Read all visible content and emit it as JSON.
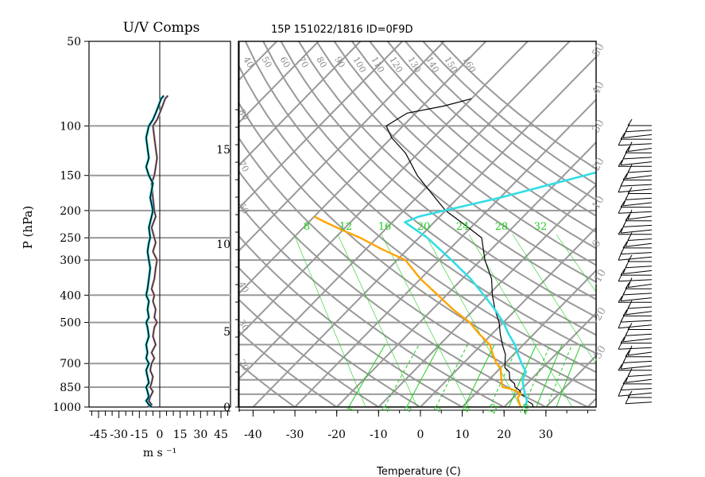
{
  "left_panel": {
    "title": "U/V Comps",
    "ylabel": "P (hPa)",
    "xlabel": "m s ⁻¹",
    "p_ticks": [
      50,
      100,
      150,
      200,
      250,
      300,
      400,
      500,
      700,
      850,
      1000
    ],
    "x_ticks": [
      -45,
      -30,
      -15,
      0,
      15,
      30,
      45
    ],
    "xlim": [
      -52,
      52
    ]
  },
  "main_panel": {
    "title": "15P 151022/1816 ID=0F9D",
    "xlabel": "Temperature (C)",
    "height_ticks": [
      0,
      5,
      10,
      15
    ],
    "x_ticks": [
      -40,
      -30,
      -20,
      -10,
      0,
      10,
      20,
      30
    ],
    "theta_labels": [
      40,
      50,
      60,
      70,
      80,
      90,
      100,
      110,
      120,
      130,
      140,
      150,
      160
    ],
    "theta_left_labels": [
      80,
      70,
      50,
      40,
      30,
      20
    ],
    "theta_e_right_labels": [
      50,
      40,
      30,
      20,
      10,
      0,
      -10,
      -20,
      -30
    ],
    "mixing_ratio_labels_mid": [
      8,
      12,
      16,
      20,
      24,
      28,
      32
    ],
    "mixing_ratio_labels_bottom": [
      1,
      2,
      3,
      5,
      8,
      12,
      20
    ]
  },
  "colors": {
    "grid": "#999999",
    "temperature": "#000000",
    "dewpoint": "#ffa500",
    "parcel": "#33dde6",
    "wind_u": "#1a1a80",
    "wind_v": "#000000",
    "mixing_ratio": "#22cc22"
  },
  "chart_data": [
    {
      "type": "line",
      "title": "U/V Comps",
      "ylabel": "P (hPa)",
      "xlabel": "m s -1",
      "x_ticks": [
        -45,
        -30,
        -15,
        0,
        15,
        30,
        45
      ],
      "series": [
        {
          "points": [
            [
              -9,
              1000
            ],
            [
              -6,
              980
            ],
            [
              -8,
              950
            ],
            [
              -7,
              920
            ],
            [
              -5,
              880
            ],
            [
              -7,
              850
            ],
            [
              -6,
              820
            ],
            [
              -5,
              780
            ],
            [
              -7,
              740
            ],
            [
              -6,
              700
            ],
            [
              -4,
              670
            ],
            [
              -6,
              640
            ],
            [
              -3,
              600
            ],
            [
              -5,
              560
            ],
            [
              -4,
              520
            ],
            [
              -2,
              500
            ],
            [
              -4,
              480
            ],
            [
              -3,
              450
            ],
            [
              -5,
              420
            ],
            [
              -4,
              400
            ],
            [
              -6,
              380
            ],
            [
              -4,
              350
            ],
            [
              -3,
              320
            ],
            [
              -2,
              300
            ],
            [
              -5,
              280
            ],
            [
              -3,
              260
            ],
            [
              -4,
              250
            ],
            [
              -6,
              230
            ],
            [
              -3,
              210
            ],
            [
              -4,
              200
            ],
            [
              -5,
              180
            ],
            [
              -6,
              160
            ],
            [
              -4,
              150
            ],
            [
              -3,
              140
            ],
            [
              -2,
              130
            ],
            [
              -3,
              120
            ],
            [
              -4,
              110
            ],
            [
              -5,
              100
            ],
            [
              -2,
              95
            ],
            [
              0,
              90
            ],
            [
              2,
              85
            ],
            [
              4,
              80
            ],
            [
              6,
              78
            ]
          ]
        },
        {
          "points": [
            [
              -6,
              1000
            ],
            [
              -8,
              980
            ],
            [
              -10,
              950
            ],
            [
              -8,
              920
            ],
            [
              -9,
              880
            ],
            [
              -10,
              850
            ],
            [
              -8,
              820
            ],
            [
              -9,
              780
            ],
            [
              -10,
              740
            ],
            [
              -8,
              700
            ],
            [
              -10,
              670
            ],
            [
              -9,
              640
            ],
            [
              -10,
              600
            ],
            [
              -8,
              560
            ],
            [
              -9,
              520
            ],
            [
              -10,
              500
            ],
            [
              -8,
              480
            ],
            [
              -9,
              450
            ],
            [
              -8,
              420
            ],
            [
              -10,
              400
            ],
            [
              -9,
              380
            ],
            [
              -8,
              350
            ],
            [
              -7,
              320
            ],
            [
              -8,
              300
            ],
            [
              -9,
              280
            ],
            [
              -8,
              260
            ],
            [
              -7,
              250
            ],
            [
              -8,
              230
            ],
            [
              -6,
              210
            ],
            [
              -5,
              200
            ],
            [
              -7,
              180
            ],
            [
              -5,
              160
            ],
            [
              -8,
              150
            ],
            [
              -10,
              140
            ],
            [
              -8,
              130
            ],
            [
              -9,
              120
            ],
            [
              -10,
              110
            ],
            [
              -8,
              100
            ],
            [
              -5,
              95
            ],
            [
              -3,
              90
            ],
            [
              -1,
              85
            ],
            [
              1,
              80
            ],
            [
              3,
              78
            ]
          ]
        }
      ]
    },
    {
      "type": "line",
      "title": "15P 151022/1816 ID=0F9D",
      "xlabel": "Temperature (C)",
      "x_ticks": [
        -40,
        -30,
        -20,
        -10,
        0,
        10,
        20,
        30
      ],
      "series": [
        {
          "points": [
            [
              27,
              1000
            ],
            [
              26,
              975
            ],
            [
              24,
              950
            ],
            [
              23,
              925
            ],
            [
              21,
              900
            ],
            [
              20,
              875
            ],
            [
              18,
              850
            ],
            [
              17,
              825
            ],
            [
              15,
              800
            ],
            [
              14,
              775
            ],
            [
              13,
              750
            ],
            [
              11,
              725
            ],
            [
              10,
              700
            ],
            [
              8,
              650
            ],
            [
              5,
              600
            ],
            [
              2,
              550
            ],
            [
              -1,
              500
            ],
            [
              -5,
              450
            ],
            [
              -9,
              400
            ],
            [
              -13,
              350
            ],
            [
              -19,
              300
            ],
            [
              -25,
              250
            ],
            [
              -32,
              225
            ],
            [
              -40,
              200
            ],
            [
              -47,
              175
            ],
            [
              -55,
              150
            ],
            [
              -63,
              125
            ],
            [
              -70,
              110
            ],
            [
              -74,
              100
            ],
            [
              -72,
              90
            ],
            [
              -65,
              85
            ],
            [
              -60,
              80
            ]
          ]
        },
        {
          "points": [
            [
              24,
              1000
            ],
            [
              23,
              975
            ],
            [
              22,
              950
            ],
            [
              21,
              925
            ],
            [
              21,
              900
            ],
            [
              19,
              875
            ],
            [
              17,
              860
            ],
            [
              15,
              850
            ],
            [
              14,
              825
            ],
            [
              13,
              800
            ],
            [
              12,
              775
            ],
            [
              11,
              750
            ],
            [
              10,
              725
            ],
            [
              8,
              700
            ],
            [
              5,
              650
            ],
            [
              2,
              600
            ],
            [
              -3,
              550
            ],
            [
              -8,
              500
            ],
            [
              -15,
              450
            ],
            [
              -22,
              400
            ],
            [
              -30,
              350
            ],
            [
              -38,
              300
            ],
            [
              -46,
              275
            ],
            [
              -54,
              250
            ],
            [
              -60,
              235
            ],
            [
              -66,
              220
            ],
            [
              -70,
              210
            ]
          ]
        },
        {
          "points": [
            [
              25,
              1000
            ],
            [
              24,
              950
            ],
            [
              22,
              900
            ],
            [
              20,
              850
            ],
            [
              18,
              800
            ],
            [
              17,
              750
            ],
            [
              14,
              700
            ],
            [
              11,
              650
            ],
            [
              8,
              600
            ],
            [
              4,
              550
            ],
            [
              0,
              500
            ],
            [
              -5,
              450
            ],
            [
              -11,
              400
            ],
            [
              -18,
              350
            ],
            [
              -27,
              300
            ],
            [
              -38,
              250
            ],
            [
              -47,
              220
            ],
            [
              -45,
              210
            ],
            [
              -30,
              180
            ],
            [
              -15,
              150
            ],
            [
              0,
              125
            ],
            [
              15,
              100
            ],
            [
              30,
              85
            ],
            [
              45,
              75
            ]
          ]
        }
      ]
    }
  ]
}
